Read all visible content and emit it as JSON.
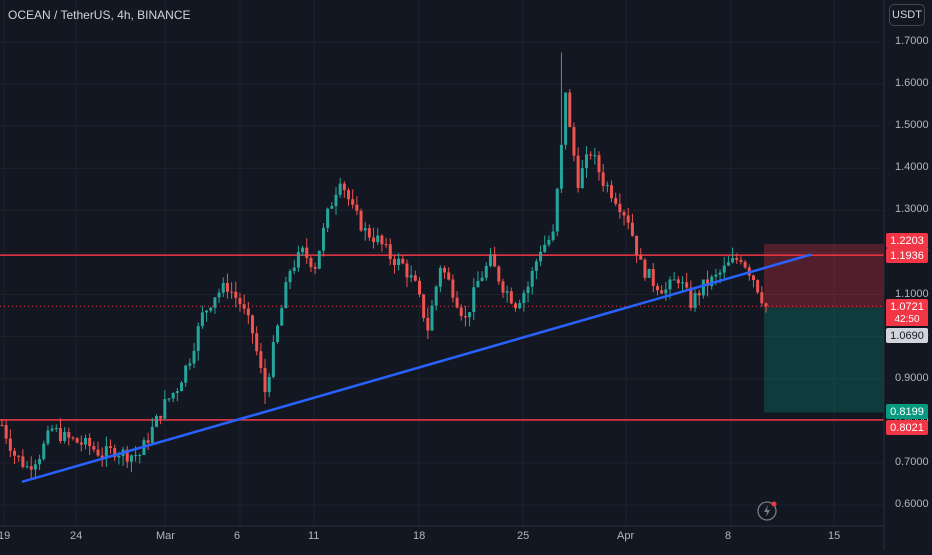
{
  "header": {
    "title": "OCEAN / TetherUS, 4h, BINANCE",
    "currency": "USDT"
  },
  "colors": {
    "background": "#131722",
    "bull": "#26a69a",
    "bear": "#ef5350",
    "trendline": "#2962ff",
    "hline": "#f23645",
    "short_risk": "rgba(242,54,69,0.28)",
    "short_reward": "rgba(8,153,129,0.28)"
  },
  "icons": {
    "replay": "replay-icon"
  },
  "chart_data": {
    "type": "candlestick",
    "symbol": "OCEAN / TetherUS",
    "interval": "4h",
    "exchange": "BINANCE",
    "ylim": [
      0.56,
      1.78
    ],
    "y_ticks": [
      "0.6000",
      "0.7000",
      "0.8000",
      "0.9000",
      "1.0000",
      "1.1000",
      "1.2000",
      "1.3000",
      "1.4000",
      "1.5000",
      "1.6000",
      "1.7000"
    ],
    "x_ticks": [
      "19",
      "24",
      "Mar",
      "6",
      "11",
      "18",
      "25",
      "Apr",
      "8",
      "15"
    ],
    "price_tags": {
      "target": "0.8199",
      "support": "0.8021",
      "stop": "1.2203",
      "resistance": "1.1936",
      "last": "1.0721",
      "countdown": "42:50",
      "entry": "1.0690"
    },
    "horizontal_lines": [
      1.1936,
      0.8021
    ],
    "last_price": 1.0721,
    "trendline": {
      "from": [
        "Feb 19",
        0.655
      ],
      "to": [
        "Apr 11",
        1.195
      ]
    },
    "short_position": {
      "entry": 1.069,
      "stop": 1.2203,
      "target": 0.8199
    },
    "candles_close_path": [
      [
        0,
        0.79
      ],
      [
        3,
        0.72
      ],
      [
        6,
        0.69
      ],
      [
        9,
        0.72
      ],
      [
        12,
        0.78
      ],
      [
        15,
        0.76
      ],
      [
        18,
        0.75
      ],
      [
        21,
        0.74
      ],
      [
        24,
        0.72
      ],
      [
        27,
        0.73
      ],
      [
        30,
        0.72
      ],
      [
        33,
        0.72
      ],
      [
        36,
        0.78
      ],
      [
        39,
        0.84
      ],
      [
        42,
        0.88
      ],
      [
        45,
        0.95
      ],
      [
        48,
        1.05
      ],
      [
        51,
        1.1
      ],
      [
        54,
        1.12
      ],
      [
        57,
        1.08
      ],
      [
        60,
        1.01
      ],
      [
        63,
        0.87
      ],
      [
        66,
        1.02
      ],
      [
        69,
        1.16
      ],
      [
        72,
        1.2
      ],
      [
        75,
        1.17
      ],
      [
        78,
        1.29
      ],
      [
        81,
        1.38
      ],
      [
        84,
        1.3
      ],
      [
        87,
        1.25
      ],
      [
        90,
        1.23
      ],
      [
        93,
        1.19
      ],
      [
        96,
        1.17
      ],
      [
        99,
        1.12
      ],
      [
        102,
        1.02
      ],
      [
        105,
        1.17
      ],
      [
        108,
        1.11
      ],
      [
        111,
        1.04
      ],
      [
        114,
        1.13
      ],
      [
        117,
        1.18
      ],
      [
        120,
        1.12
      ],
      [
        123,
        1.08
      ],
      [
        126,
        1.12
      ],
      [
        129,
        1.21
      ],
      [
        132,
        1.24
      ],
      [
        135,
        1.55
      ],
      [
        138,
        1.37
      ],
      [
        141,
        1.44
      ],
      [
        144,
        1.37
      ],
      [
        147,
        1.33
      ],
      [
        150,
        1.28
      ],
      [
        153,
        1.17
      ],
      [
        156,
        1.13
      ],
      [
        159,
        1.11
      ],
      [
        162,
        1.14
      ],
      [
        165,
        1.08
      ],
      [
        168,
        1.12
      ],
      [
        171,
        1.14
      ],
      [
        174,
        1.17
      ],
      [
        177,
        1.19
      ],
      [
        180,
        1.14
      ],
      [
        183,
        1.07
      ]
    ]
  }
}
